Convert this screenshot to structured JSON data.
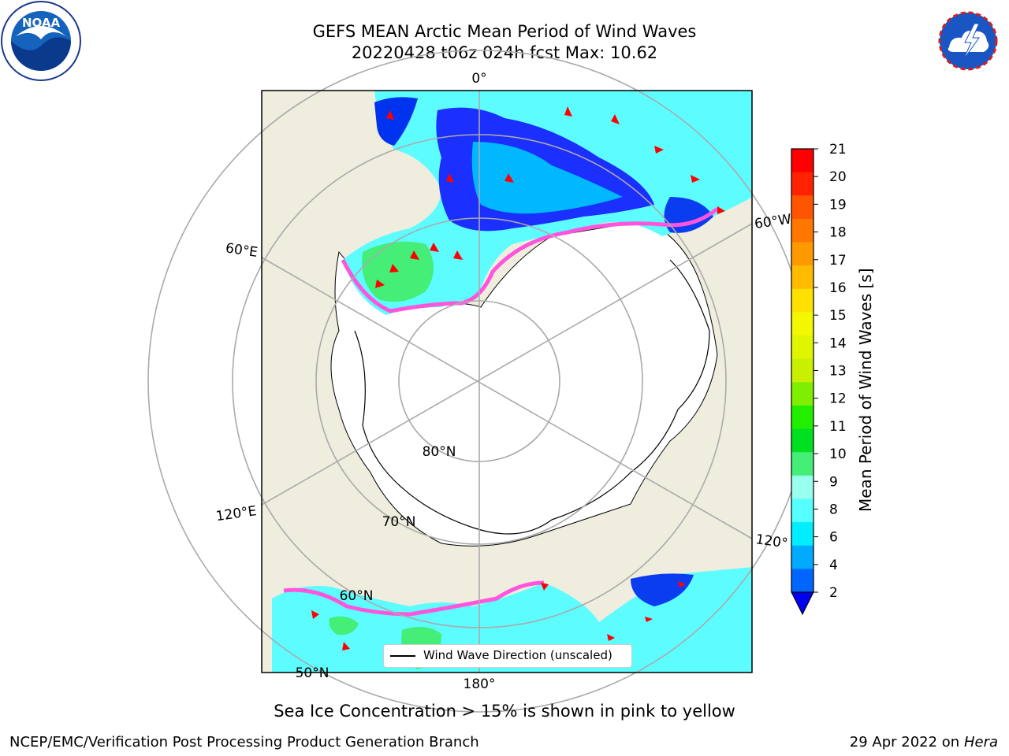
{
  "header": {
    "title_line1": "GEFS MEAN Arctic Mean Period of Wind Waves",
    "title_line2": "20220428 t06z 024h fcst   Max: 10.62"
  },
  "logos": {
    "left": "NOAA",
    "right": "NATIONAL WEATHER SERVICE"
  },
  "map": {
    "meridian_labels": [
      "0°",
      "60°W",
      "120°",
      "180°",
      "120°E",
      "60°E"
    ],
    "parallel_labels": [
      "80°N",
      "70°N",
      "60°N",
      "50°N"
    ],
    "legend_label": "Wind Wave Direction (unscaled)"
  },
  "colorbar": {
    "label": "Mean Period of Wind Waves [s]",
    "ticks": [
      "21",
      "20",
      "19",
      "18",
      "17",
      "16",
      "15",
      "14",
      "13",
      "12",
      "11",
      "10",
      "9",
      "8",
      "6",
      "4",
      "2"
    ],
    "colors": [
      "#ff0000",
      "#ff2200",
      "#ff5500",
      "#ff7700",
      "#ff9900",
      "#ffbb00",
      "#ffe000",
      "#f3f700",
      "#e0f500",
      "#c8f000",
      "#80ee00",
      "#22ee00",
      "#00e020",
      "#44ee77",
      "#99ffee",
      "#55ffff",
      "#00eeff",
      "#00aaff",
      "#0066ff"
    ],
    "under_color": "#0000ee"
  },
  "caption": "Sea Ice Concentration > 15% is shown in pink to yellow",
  "footer": {
    "left": "NCEP/EMC/Verification Post Processing Product Generation Branch",
    "right_prefix": "29 Apr 2022 on ",
    "right_italic": "Hera"
  }
}
